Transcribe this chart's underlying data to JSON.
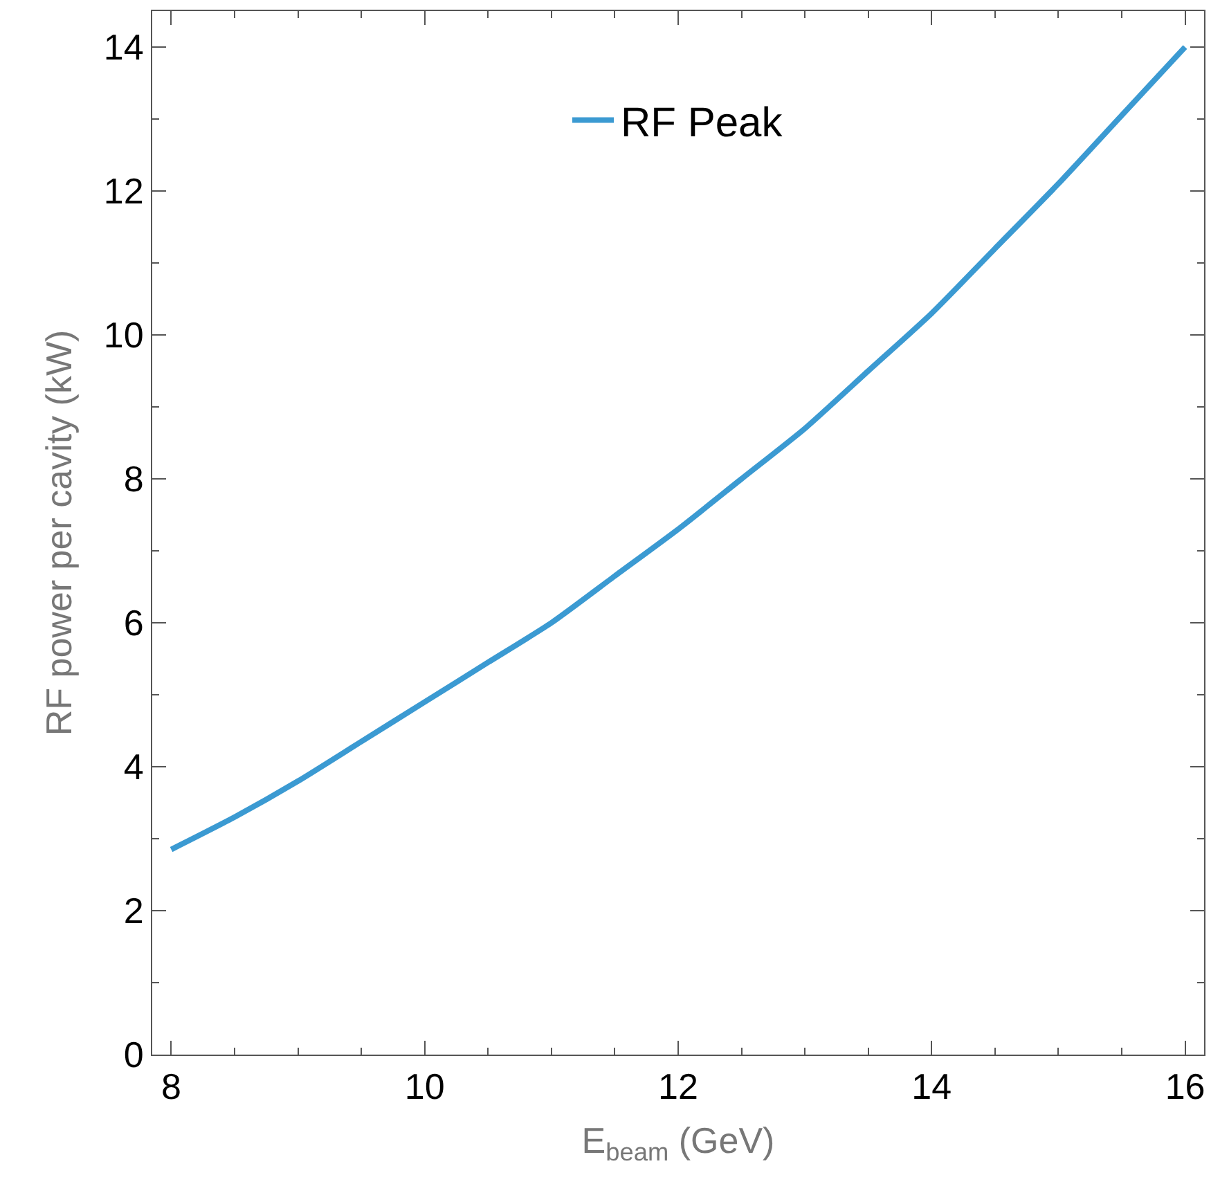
{
  "chart_data": {
    "type": "line",
    "xlabel": "E$_{beam}$ (GeV)",
    "ylabel": "RF power per cavity (kW)",
    "x": [
      8,
      8.5,
      9,
      9.5,
      10,
      10.5,
      11,
      11.5,
      12,
      12.5,
      13,
      13.5,
      14,
      14.5,
      15,
      15.5,
      16
    ],
    "series": [
      {
        "name": "RF Peak",
        "color": "#3b9ad2",
        "values": [
          2.85,
          3.3,
          3.8,
          4.35,
          4.9,
          5.45,
          6.0,
          6.65,
          7.3,
          8.0,
          8.7,
          9.5,
          10.3,
          11.2,
          12.1,
          13.05,
          14.0
        ]
      }
    ],
    "xlim": [
      7.85,
      16.15
    ],
    "ylim": [
      0,
      14.5
    ],
    "xticks": [
      8,
      10,
      12,
      14,
      16
    ],
    "yticks": [
      0,
      2,
      4,
      6,
      8,
      10,
      12,
      14
    ],
    "legend": "top",
    "marker": "none",
    "line_style": "solid"
  }
}
